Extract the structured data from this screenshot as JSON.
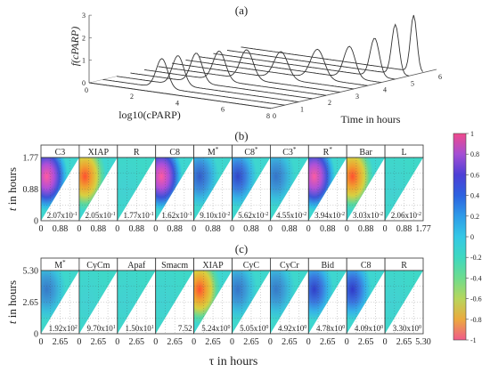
{
  "chart_data": [
    {
      "type": "line",
      "panel_label": "(a)",
      "xlabel": "log10(cPARP)",
      "ylabel": "f(cPARP)",
      "depth_label": "Time in hours",
      "x_ticks": [
        "0",
        "2",
        "4",
        "6",
        "8"
      ],
      "y_ticks": [
        "0",
        "1",
        "2",
        "3"
      ],
      "depth_ticks": [
        "0",
        "1",
        "2",
        "3",
        "4",
        "5",
        "6"
      ],
      "xlim": [
        0,
        8
      ],
      "ylim": [
        0,
        3
      ],
      "depth_lim": [
        0,
        6
      ],
      "series": [
        {
          "time": 0.0,
          "peak_x": 2.6,
          "peak_y": 0.0,
          "width": 0.25
        },
        {
          "time": 0.5,
          "peak_x": 2.6,
          "peak_y": 1.3,
          "width": 0.25
        },
        {
          "time": 1.0,
          "peak_x": 2.7,
          "peak_y": 1.3,
          "width": 0.25
        },
        {
          "time": 1.5,
          "peak_x": 2.9,
          "peak_y": 1.3,
          "width": 0.25
        },
        {
          "time": 2.0,
          "peak_x": 3.3,
          "peak_y": 1.3,
          "width": 0.27
        },
        {
          "time": 2.5,
          "peak_x": 3.9,
          "peak_y": 1.3,
          "width": 0.28
        },
        {
          "time": 3.0,
          "peak_x": 4.8,
          "peak_y": 1.2,
          "width": 0.3
        },
        {
          "time": 3.5,
          "peak_x": 5.8,
          "peak_y": 1.3,
          "width": 0.3
        },
        {
          "time": 4.0,
          "peak_x": 6.6,
          "peak_y": 1.4,
          "width": 0.25
        },
        {
          "time": 4.5,
          "peak_x": 7.1,
          "peak_y": 1.7,
          "width": 0.2
        },
        {
          "time": 5.0,
          "peak_x": 7.4,
          "peak_y": 2.2,
          "width": 0.16
        },
        {
          "time": 5.5,
          "peak_x": 7.6,
          "peak_y": 2.5,
          "width": 0.14
        }
      ]
    },
    {
      "type": "heatmap",
      "panel_label": "(b)",
      "ylabel_prefix": "t",
      "ylabel_suffix": " in hours",
      "y_ticks": [
        "1.77",
        "0.88",
        "0"
      ],
      "x_ticks": [
        "0",
        "0.88",
        "1.77"
      ],
      "range": [
        0,
        1.77
      ],
      "panels": [
        {
          "title": "C3",
          "sup": "",
          "value": "2.07x10",
          "exp": "-1",
          "intensity": 1.0,
          "peak": "pink"
        },
        {
          "title": "XIAP",
          "sup": "",
          "value": "2.05x10",
          "exp": "-1",
          "intensity": 1.0,
          "peak": "orange"
        },
        {
          "title": "R",
          "sup": "",
          "value": "1.77x10",
          "exp": "-1",
          "intensity": 0.12,
          "peak": "cyan"
        },
        {
          "title": "C8",
          "sup": "",
          "value": "1.62x10",
          "exp": "-1",
          "intensity": 0.95,
          "peak": "pink"
        },
        {
          "title": "M",
          "sup": "*",
          "value": "9.10x10",
          "exp": "-2",
          "intensity": 0.55,
          "peak": "blue"
        },
        {
          "title": "C8",
          "sup": "*",
          "value": "5.62x10",
          "exp": "-2",
          "intensity": 0.75,
          "peak": "blue"
        },
        {
          "title": "C3",
          "sup": "*",
          "value": "4.55x10",
          "exp": "-2",
          "intensity": 0.35,
          "peak": "blue"
        },
        {
          "title": "R",
          "sup": "*",
          "value": "3.94x10",
          "exp": "-2",
          "intensity": 0.9,
          "peak": "pink"
        },
        {
          "title": "Bar",
          "sup": "",
          "value": "3.03x10",
          "exp": "-2",
          "intensity": 1.0,
          "peak": "orange"
        },
        {
          "title": "L",
          "sup": "",
          "value": "2.06x10",
          "exp": "-2",
          "intensity": 0.1,
          "peak": "cyan"
        }
      ]
    },
    {
      "type": "heatmap",
      "panel_label": "(c)",
      "ylabel_prefix": "t",
      "ylabel_suffix": " in hours",
      "xlabel": "τ in hours",
      "y_ticks": [
        "5.30",
        "2.65",
        "0"
      ],
      "x_ticks": [
        "0",
        "2.65",
        "5.30"
      ],
      "range": [
        0,
        5.3
      ],
      "panels": [
        {
          "title": "M",
          "sup": "*",
          "value": "1.92x10",
          "exp": "2",
          "intensity": 0.3,
          "peak": "blue"
        },
        {
          "title": "CyCm",
          "sup": "",
          "value": "9.70x10",
          "exp": "1",
          "intensity": 0.15,
          "peak": "cyan"
        },
        {
          "title": "Apaf",
          "sup": "",
          "value": "1.50x10",
          "exp": "1",
          "intensity": 0.1,
          "peak": "cyan"
        },
        {
          "title": "Smacm",
          "sup": "",
          "value": "7.52",
          "exp": "",
          "intensity": 0.1,
          "peak": "cyan"
        },
        {
          "title": "XIAP",
          "sup": "",
          "value": "5.24x10",
          "exp": "0",
          "intensity": 1.0,
          "peak": "orange"
        },
        {
          "title": "CyC",
          "sup": "",
          "value": "5.05x10",
          "exp": "0",
          "intensity": 0.35,
          "peak": "blue"
        },
        {
          "title": "CyCr",
          "sup": "",
          "value": "4.92x10",
          "exp": "0",
          "intensity": 0.3,
          "peak": "blue"
        },
        {
          "title": "Bid",
          "sup": "",
          "value": "4.78x10",
          "exp": "0",
          "intensity": 0.8,
          "peak": "blue"
        },
        {
          "title": "C8",
          "sup": "",
          "value": "4.09x10",
          "exp": "0",
          "intensity": 0.85,
          "peak": "blue"
        },
        {
          "title": "R",
          "sup": "",
          "value": "3.30x10",
          "exp": "0",
          "intensity": 0.12,
          "peak": "cyan"
        }
      ]
    }
  ],
  "colorbar": {
    "ticks": [
      "1",
      "0.8",
      "0.6",
      "0.4",
      "0.2",
      "0",
      "-0.2",
      "-0.4",
      "-0.6",
      "-0.8",
      "-1"
    ],
    "range": [
      -1,
      1
    ],
    "colors": [
      "#f04a8c",
      "#a44fd4",
      "#4d3fd6",
      "#2c62e0",
      "#2e9be8",
      "#34c8e6",
      "#3ed8c0",
      "#6edc8e",
      "#b7d65c",
      "#ecaa3e",
      "#f05a8a"
    ]
  }
}
